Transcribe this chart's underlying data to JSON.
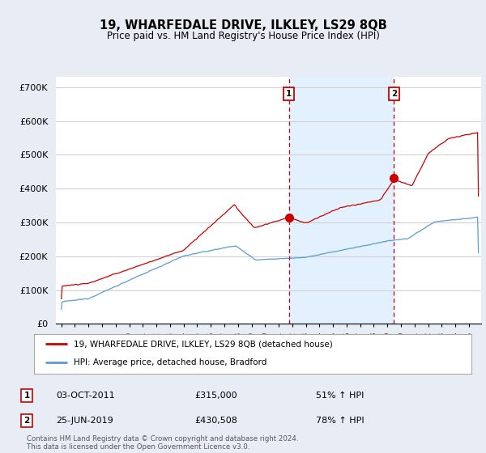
{
  "title": "19, WHARFEDALE DRIVE, ILKLEY, LS29 8QB",
  "subtitle": "Price paid vs. HM Land Registry's House Price Index (HPI)",
  "ylabel_ticks": [
    "£0",
    "£100K",
    "£200K",
    "£300K",
    "£400K",
    "£500K",
    "£600K",
    "£700K"
  ],
  "ytick_values": [
    0,
    100000,
    200000,
    300000,
    400000,
    500000,
    600000,
    700000
  ],
  "ylim": [
    0,
    730000
  ],
  "xlim_start": 1994.6,
  "xlim_end": 2025.9,
  "sale1_date": 2011.75,
  "sale1_price": 315000,
  "sale2_date": 2019.48,
  "sale2_price": 430508,
  "hpi_line_color": "#5b9bd5",
  "price_line_color": "#cc0000",
  "vline_color": "#cc0000",
  "shade_color": "#ddeeff",
  "legend_line1": "19, WHARFEDALE DRIVE, ILKLEY, LS29 8QB (detached house)",
  "legend_line2": "HPI: Average price, detached house, Bradford",
  "footnote": "Contains HM Land Registry data © Crown copyright and database right 2024.\nThis data is licensed under the Open Government Licence v3.0.",
  "background_color": "#e8edf5",
  "plot_bg_color": "#ffffff",
  "grid_color": "#cccccc",
  "sale1_row": "03-OCT-2011",
  "sale1_price_str": "£315,000",
  "sale1_hpi": "51% ↑ HPI",
  "sale2_row": "25-JUN-2019",
  "sale2_price_str": "£430,508",
  "sale2_hpi": "78% ↑ HPI"
}
